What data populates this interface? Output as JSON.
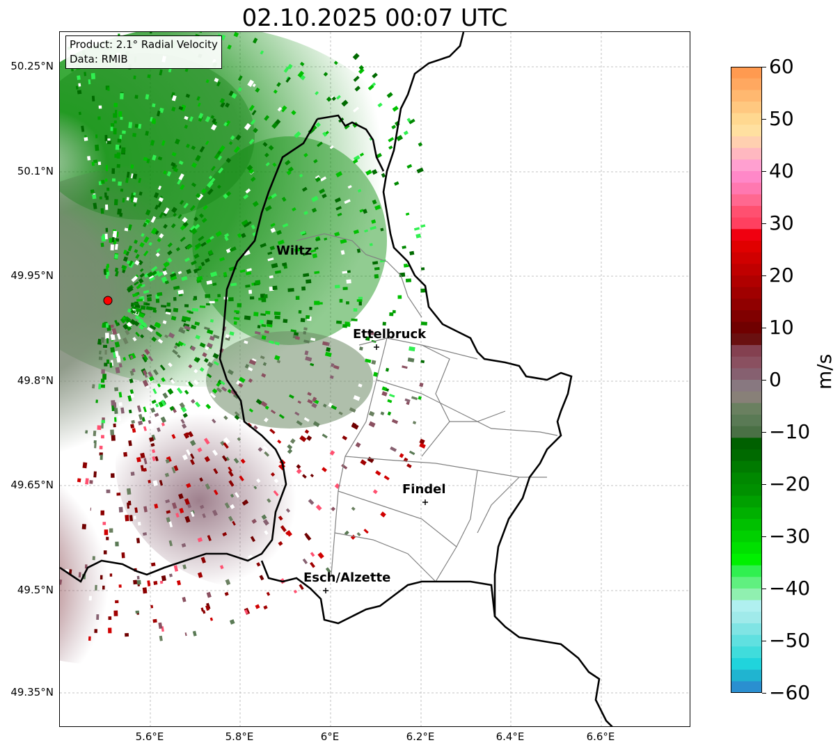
{
  "title": "02.10.2025 00:07 UTC",
  "info": {
    "product": "Product: 2.1° Radial Velocity",
    "data": "Data: RMIB"
  },
  "lat_ticks": [
    "50.25°N",
    "50.1°N",
    "49.95°N",
    "49.8°N",
    "49.65°N",
    "49.5°N",
    "49.35°N"
  ],
  "lon_ticks": [
    "5.6°E",
    "5.8°E",
    "6°E",
    "6.2°E",
    "6.4°E",
    "6.6°E"
  ],
  "cities": [
    {
      "name": "Wiltz"
    },
    {
      "name": "Ettelbruck"
    },
    {
      "name": "Findel"
    },
    {
      "name": "Esch/Alzette"
    }
  ],
  "colorbar": {
    "label": "m/s",
    "ticks": [
      "60",
      "50",
      "40",
      "30",
      "20",
      "10",
      "0",
      "−10",
      "−20",
      "−30",
      "−40",
      "−50",
      "−60"
    ],
    "range": [
      -60,
      60
    ]
  },
  "colors": {
    "inbound_strong": "#2a8fd0",
    "inbound": "#00cc00",
    "zero": "#8a8a80",
    "outbound": "#8b0000",
    "outbound_strong": "#ff9a50",
    "radar_site": "#ff0000"
  }
}
